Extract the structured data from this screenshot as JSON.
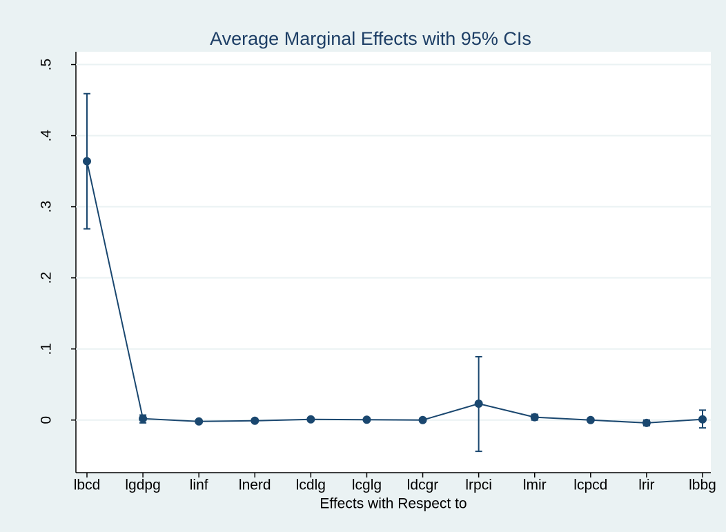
{
  "chart_data": {
    "type": "line",
    "title": "Average Marginal Effects with 95% CIs",
    "x_label": "Effects with Respect to",
    "categories": [
      "lbcd",
      "lgdpg",
      "linf",
      "lnerd",
      "lcdlg",
      "lcglg",
      "ldcgr",
      "lrpci",
      "lmir",
      "lcpcd",
      "lrir",
      "lbbg"
    ],
    "series": [
      {
        "color": "#1a476f",
        "values": [
          0.364,
          0.002,
          -0.002,
          -0.001,
          0.001,
          0.0005,
          0,
          0.023,
          0.004,
          0,
          -0.004,
          0.001
        ],
        "ci_lower": [
          0.269,
          -0.004,
          -0.004,
          -0.003,
          -0.001,
          -0.001,
          -0.002,
          -0.044,
          0,
          -0.002,
          -0.008,
          -0.011
        ],
        "ci_upper": [
          0.459,
          0.007,
          0,
          0.001,
          0.003,
          0.002,
          0.002,
          0.089,
          0.008,
          0.002,
          0,
          0.014
        ]
      }
    ],
    "ylim": [
      -0.074,
      0.518
    ],
    "yticks": [
      0,
      {
        "value": 0.1,
        "label": ".1"
      },
      {
        "value": 0.2,
        "label": ".2"
      },
      {
        "value": 0.3,
        "label": ".3"
      },
      {
        "value": 0.4,
        "label": ".4"
      },
      {
        "value": 0.5,
        "label": ".5"
      }
    ],
    "grid": true
  }
}
